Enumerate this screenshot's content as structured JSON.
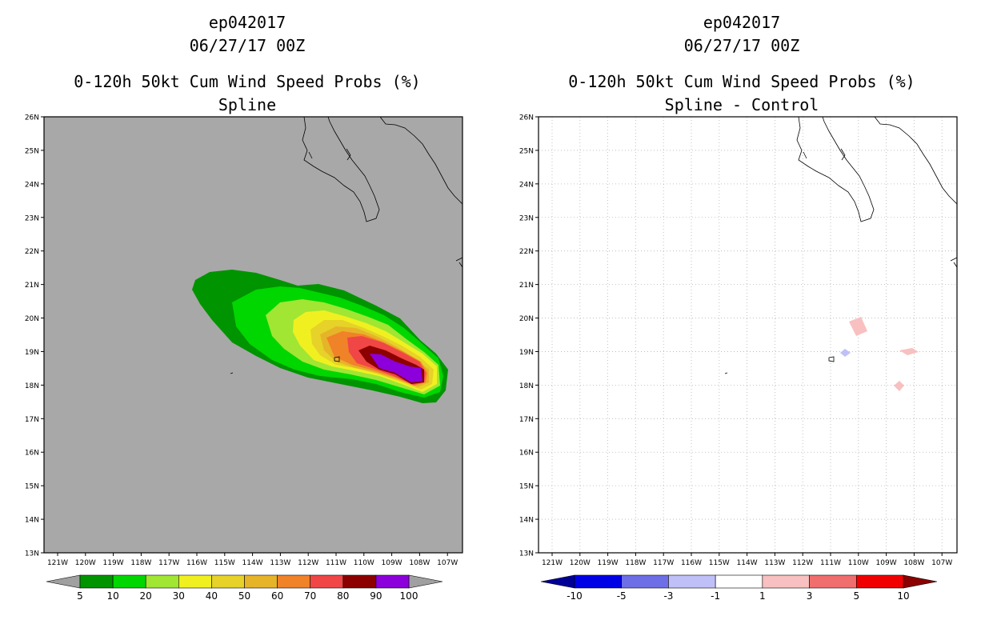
{
  "panels": [
    {
      "storm_id": "ep042017",
      "datetime": "06/27/17 00Z",
      "product": "0-120h 50kt Cum Wind Speed Probs (%)",
      "subtitle": "Spline",
      "colorbar": {
        "labels": [
          "5",
          "10",
          "20",
          "30",
          "40",
          "50",
          "60",
          "70",
          "80",
          "90",
          "100"
        ],
        "colors": [
          "#009400",
          "#00d600",
          "#a0e632",
          "#f0f020",
          "#e6d228",
          "#e6b428",
          "#f08228",
          "#f04646",
          "#8c0000",
          "#8c00dc"
        ],
        "under_color": "#a0a0a0",
        "over_color": "#a0a0a0"
      }
    },
    {
      "storm_id": "ep042017",
      "datetime": "06/27/17 00Z",
      "product": "0-120h 50kt Cum Wind Speed Probs (%)",
      "subtitle": "Spline - Control",
      "colorbar": {
        "labels": [
          "-10",
          "-5",
          "-3",
          "-1",
          "1",
          "3",
          "5",
          "10"
        ],
        "colors": [
          "#0000e6",
          "#6e6ee6",
          "#c0c0f8",
          "#ffffff",
          "#f8c0c0",
          "#f06e6e",
          "#f00000"
        ],
        "under_color": "#000096",
        "over_color": "#8c0000"
      }
    }
  ],
  "map": {
    "lat_labels": [
      "26N",
      "25N",
      "24N",
      "23N",
      "22N",
      "21N",
      "20N",
      "19N",
      "18N",
      "17N",
      "16N",
      "15N",
      "14N",
      "13N"
    ],
    "lon_labels": [
      "121W",
      "120W",
      "119W",
      "118W",
      "117W",
      "116W",
      "115W",
      "114W",
      "113W",
      "112W",
      "111W",
      "110W",
      "109W",
      "108W",
      "107W"
    ],
    "background_left": "#a8a8a8",
    "background_right": "#ffffff",
    "grid_right": true
  }
}
